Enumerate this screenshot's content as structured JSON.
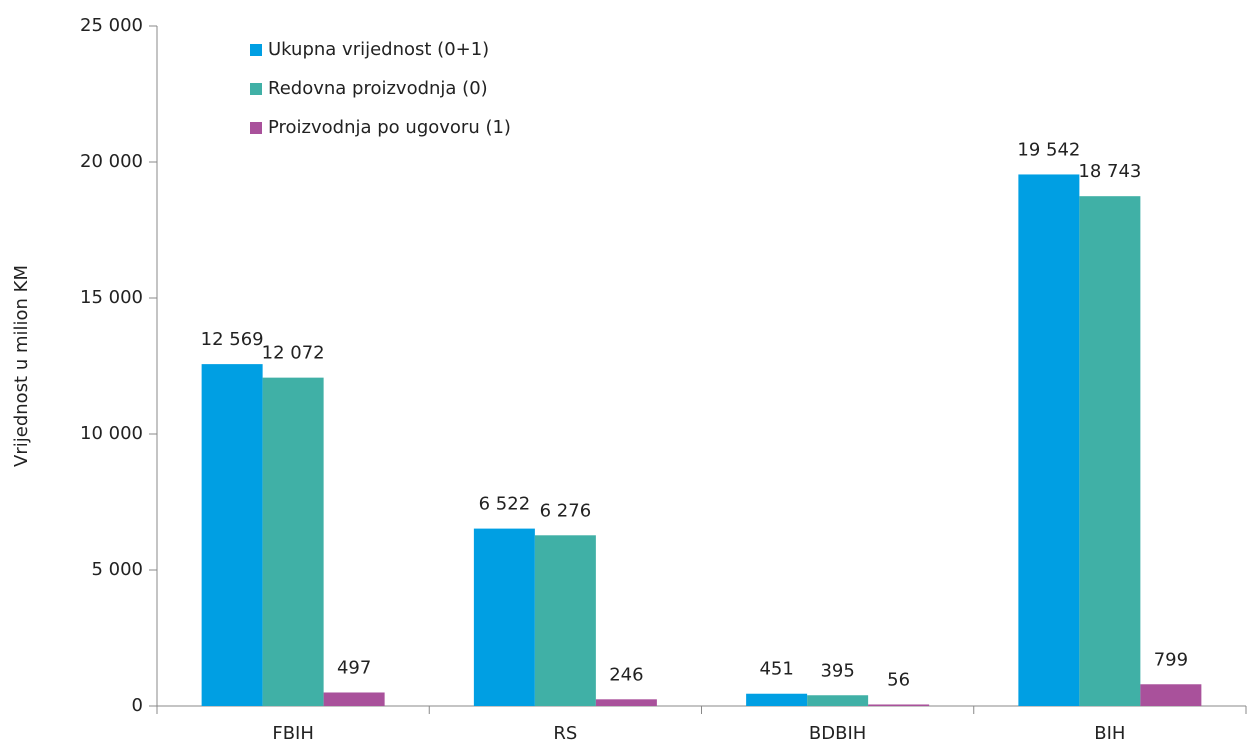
{
  "chart_data": {
    "type": "bar",
    "y_axis_label": "Vrijednost u milion KM",
    "categories": [
      "FBIH",
      "RS",
      "BDBIH",
      "BIH"
    ],
    "series": [
      {
        "name": "Ukupna vrijednost (0+1)",
        "color": "#009fe3",
        "values": [
          12569,
          6522,
          451,
          19542
        ],
        "value_labels": [
          "12 569",
          "6 522",
          "451",
          "19 542"
        ]
      },
      {
        "name": "Redovna proizvodnja (0)",
        "color": "#40b0a6",
        "values": [
          12072,
          6276,
          395,
          18743
        ],
        "value_labels": [
          "12 072",
          "6 276",
          "395",
          "18 743"
        ]
      },
      {
        "name": "Proizvodnja po ugovoru (1)",
        "color": "#a9519b",
        "values": [
          497,
          246,
          56,
          799
        ]
      }
    ],
    "ylim": [
      0,
      25000
    ],
    "yticks": [
      0,
      {
        "value": 5000,
        "label": "5 000"
      },
      {
        "value": 10000,
        "label": "10 000"
      },
      {
        "value": 15000,
        "label": "15 000"
      },
      {
        "value": 20000,
        "label": "20 000"
      },
      {
        "value": 25000,
        "label": "25 000"
      }
    ],
    "legend": "top-left"
  }
}
